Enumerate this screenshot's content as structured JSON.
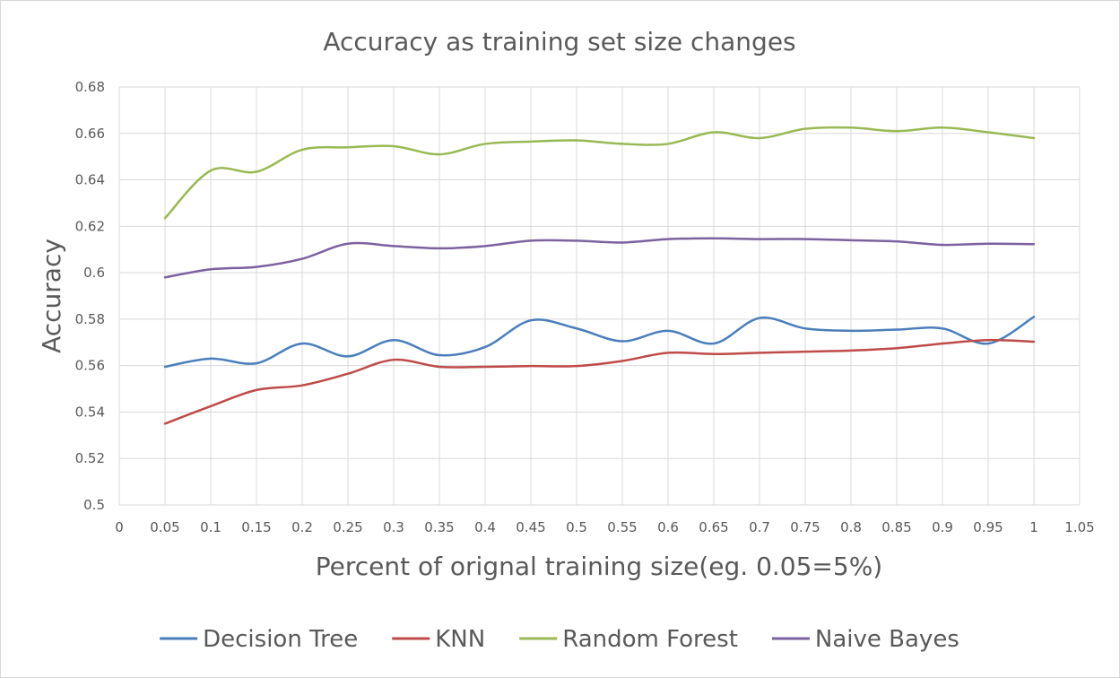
{
  "chart_data": {
    "type": "line",
    "title": "Accuracy as training set size changes",
    "xlabel": "Percent  of orignal training size(eg. 0.05=5%)",
    "ylabel": "Accuracy",
    "xlim": [
      0,
      1.05
    ],
    "ylim": [
      0.5,
      0.68
    ],
    "xticks": [
      "0",
      "0.05",
      "0.1",
      "0.15",
      "0.2",
      "0.25",
      "0.3",
      "0.35",
      "0.4",
      "0.45",
      "0.5",
      "0.55",
      "0.6",
      "0.65",
      "0.7",
      "0.75",
      "0.8",
      "0.85",
      "0.9",
      "0.95",
      "1",
      "1.05"
    ],
    "yticks": [
      "0.5",
      "0.52",
      "0.54",
      "0.56",
      "0.58",
      "0.6",
      "0.62",
      "0.64",
      "0.66",
      "0.68"
    ],
    "grid": true,
    "smooth": true,
    "legend_position": "bottom",
    "x": [
      0.05,
      0.1,
      0.15,
      0.2,
      0.25,
      0.3,
      0.35,
      0.4,
      0.45,
      0.5,
      0.55,
      0.6,
      0.65,
      0.7,
      0.75,
      0.8,
      0.85,
      0.9,
      0.95,
      1
    ],
    "series": [
      {
        "name": "Decision Tree",
        "color": "#4a7ebb",
        "values": [
          0.5595,
          0.563,
          0.561,
          0.5695,
          0.564,
          0.571,
          0.5645,
          0.568,
          0.5795,
          0.576,
          0.5705,
          0.575,
          0.5695,
          0.5805,
          0.576,
          0.575,
          0.5755,
          0.576,
          0.5695,
          0.581
        ]
      },
      {
        "name": "KNN",
        "color": "#be4b48",
        "values": [
          0.535,
          0.5425,
          0.5495,
          0.5515,
          0.5565,
          0.5625,
          0.5595,
          0.5595,
          0.5598,
          0.5598,
          0.562,
          0.5655,
          0.565,
          0.5655,
          0.566,
          0.5665,
          0.5675,
          0.5695,
          0.571,
          0.5703
        ]
      },
      {
        "name": "Random Forest",
        "color": "#98b954",
        "values": [
          0.6235,
          0.644,
          0.6435,
          0.653,
          0.654,
          0.6545,
          0.651,
          0.6555,
          0.6565,
          0.657,
          0.6555,
          0.6555,
          0.6605,
          0.658,
          0.662,
          0.6625,
          0.661,
          0.6625,
          0.6605,
          0.658
        ]
      },
      {
        "name": "Naive Bayes",
        "color": "#7d60a0",
        "values": [
          0.598,
          0.6015,
          0.6025,
          0.606,
          0.6125,
          0.6115,
          0.6105,
          0.6115,
          0.6138,
          0.6138,
          0.613,
          0.6145,
          0.6148,
          0.6145,
          0.6145,
          0.614,
          0.6135,
          0.612,
          0.6125,
          0.6123
        ]
      }
    ]
  }
}
